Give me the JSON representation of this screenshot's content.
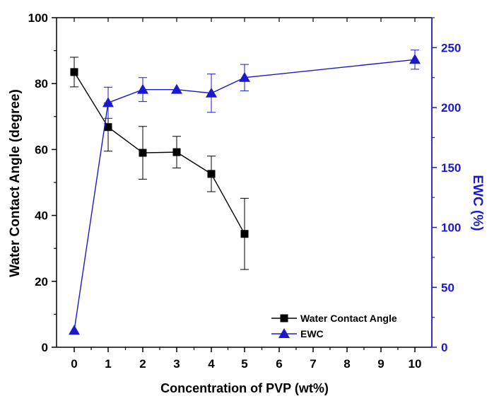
{
  "chart_data": {
    "type": "line",
    "x_axis": {
      "label": "Concentration of PVP (wt%)",
      "tick_labels": [
        "0",
        "1",
        "2",
        "3",
        "4",
        "5",
        "6",
        "7",
        "8",
        "9",
        "10"
      ]
    },
    "y_left": {
      "label": "Water Contact Angle (degree)",
      "ylim": [
        0,
        100
      ],
      "ticks": [
        0,
        20,
        40,
        60,
        80,
        100
      ],
      "color": "#000000"
    },
    "y_right": {
      "label": "EWC (%)",
      "ylim": [
        0,
        275
      ],
      "ticks": [
        0,
        50,
        100,
        150,
        200,
        250
      ],
      "color": "#1a1acc"
    },
    "grid": false,
    "legend_position": "bottom-right",
    "series": [
      {
        "name": "Water Contact Angle",
        "axis": "left",
        "marker": "square",
        "color": "#000000",
        "x": [
          "0",
          "1",
          "2",
          "3",
          "4",
          "5"
        ],
        "y": [
          83.5,
          66.8,
          59.0,
          59.2,
          52.6,
          34.4
        ],
        "error": [
          4.5,
          7.3,
          8.0,
          4.8,
          5.4,
          10.8
        ]
      },
      {
        "name": "EWC",
        "axis": "right",
        "marker": "triangle",
        "color": "#1a1acc",
        "x": [
          "0",
          "1",
          "2",
          "3",
          "4",
          "5",
          "10"
        ],
        "y": [
          14,
          204,
          215,
          215,
          212,
          225,
          240
        ],
        "error": [
          0,
          13,
          10,
          0,
          16,
          11,
          8
        ]
      }
    ]
  }
}
